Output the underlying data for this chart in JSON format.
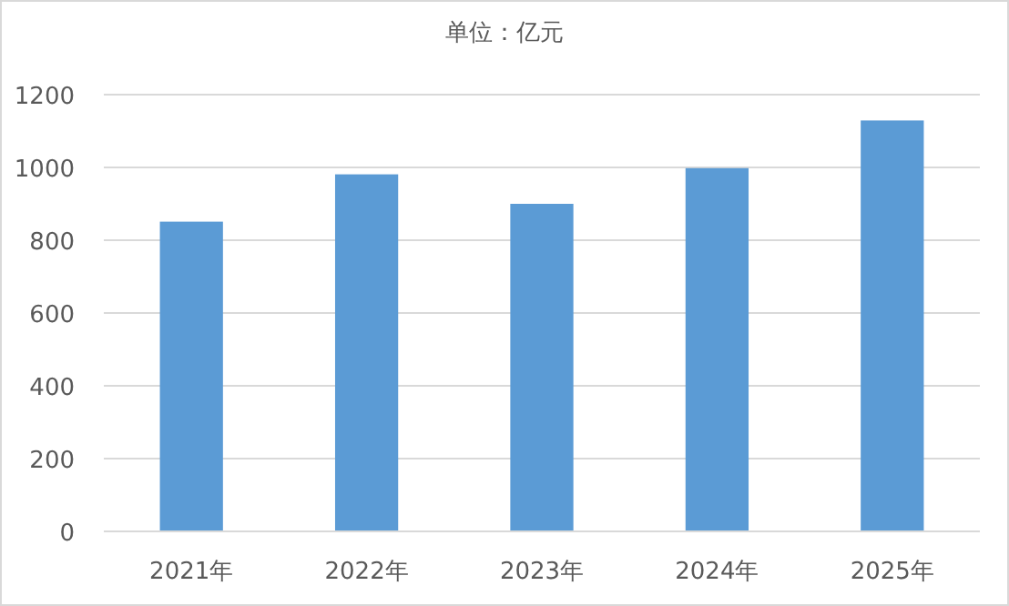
{
  "chart_data": {
    "type": "bar",
    "title": "单位：亿元",
    "categories": [
      "2021年",
      "2022年",
      "2023年",
      "2024年",
      "2025年"
    ],
    "values": [
      851,
      981,
      900,
      998,
      1129
    ],
    "color": "#5b9bd5",
    "ylim": [
      0,
      1200
    ],
    "yticks": [
      0,
      200,
      400,
      600,
      800,
      1000,
      1200
    ],
    "grid": "y"
  }
}
